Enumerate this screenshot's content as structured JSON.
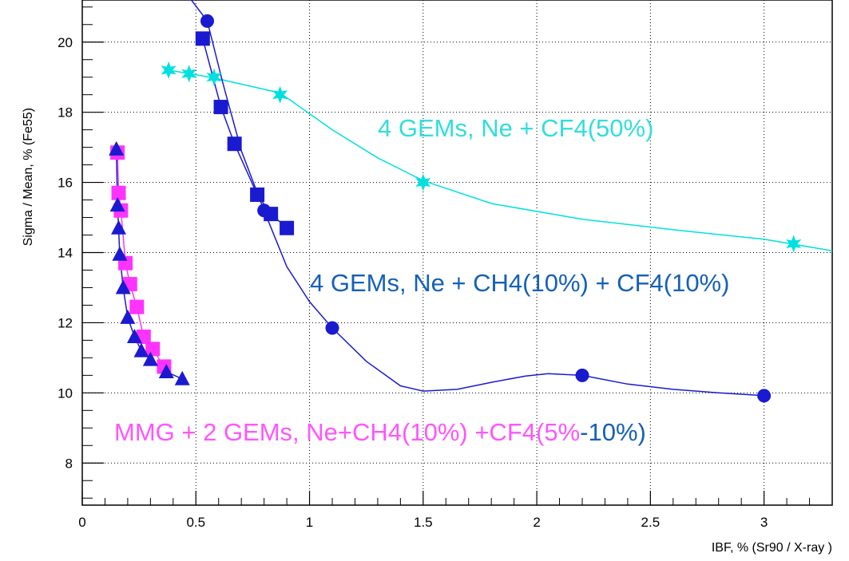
{
  "chart_data": {
    "type": "scatter",
    "title": "",
    "xlabel": "IBF, % (Sr90 / X-ray )",
    "ylabel": "Sigma / Mean, % (Fe55)",
    "xlim": [
      0,
      3.3
    ],
    "ylim": [
      6.8,
      21.2
    ],
    "x_ticks": [
      "0",
      "0.5",
      "1",
      "1.5",
      "2",
      "2.5",
      "3"
    ],
    "y_ticks": [
      "8",
      "10",
      "12",
      "14",
      "16",
      "18",
      "20"
    ],
    "grid": true,
    "series": [
      {
        "name": "4 GEMs, Ne + CF4(50%)",
        "marker": "star",
        "color": "#00e0e0",
        "x": [
          0.38,
          0.47,
          0.58,
          0.87,
          1.5,
          3.13
        ],
        "y": [
          19.2,
          19.1,
          19.0,
          18.5,
          16.0,
          14.25
        ],
        "curve": {
          "x": [
            0.38,
            0.47,
            0.58,
            0.87,
            1.1,
            1.3,
            1.5,
            1.8,
            2.2,
            2.6,
            3.0,
            3.3
          ],
          "y": [
            19.2,
            19.1,
            18.98,
            18.55,
            17.5,
            16.7,
            16.05,
            15.4,
            14.95,
            14.65,
            14.38,
            14.05
          ]
        }
      },
      {
        "name": "4 GEMs, Ne + CH4(10%)  + CF4(10%)",
        "marker": "circle",
        "color": "#1a1ad0",
        "x": [
          0.55,
          0.8,
          1.1,
          2.2,
          3.0
        ],
        "y": [
          20.6,
          15.2,
          11.85,
          10.5,
          9.92
        ],
        "curve": {
          "x": [
            0.48,
            0.55,
            0.62,
            0.7,
            0.8,
            0.9,
            1.0,
            1.1,
            1.25,
            1.4,
            1.5,
            1.65,
            1.8,
            1.95,
            2.05,
            2.2,
            2.4,
            2.6,
            2.8,
            3.0
          ],
          "y": [
            21.2,
            20.6,
            18.8,
            16.9,
            15.2,
            13.6,
            12.6,
            11.85,
            10.9,
            10.2,
            10.05,
            10.1,
            10.3,
            10.48,
            10.55,
            10.5,
            10.25,
            10.1,
            10.0,
            9.92
          ]
        }
      },
      {
        "name": "4 GEMs, Ne + CH4(10%)  + CF4(10%) (squares)",
        "marker": "square",
        "color": "#1a1ad0",
        "x": [
          0.53,
          0.61,
          0.67,
          0.77,
          0.83,
          0.9
        ],
        "y": [
          20.1,
          18.15,
          17.1,
          15.65,
          15.1,
          14.7
        ],
        "curve": {
          "x": [
            0.53,
            0.61,
            0.67,
            0.77,
            0.83,
            0.9
          ],
          "y": [
            20.1,
            18.15,
            17.1,
            15.65,
            15.1,
            14.7
          ]
        }
      },
      {
        "name": "MMG + 2 GEMs, Ne+CH4(10%) +CF4(5%",
        "marker": "square",
        "color": "#ff33ff",
        "x": [
          0.155,
          0.16,
          0.17,
          0.19,
          0.21,
          0.24,
          0.27,
          0.31,
          0.36
        ],
        "y": [
          16.85,
          15.7,
          15.2,
          13.7,
          13.1,
          12.45,
          11.6,
          11.25,
          10.75
        ],
        "curve": {
          "x": [
            0.155,
            0.16,
            0.17,
            0.19,
            0.21,
            0.24,
            0.27,
            0.31,
            0.36
          ],
          "y": [
            16.85,
            15.7,
            15.2,
            13.7,
            13.1,
            12.45,
            11.6,
            11.25,
            10.75
          ]
        }
      },
      {
        "name": "-10%)",
        "marker": "triangle",
        "color": "#1a1ad0",
        "x": [
          0.15,
          0.155,
          0.16,
          0.165,
          0.18,
          0.2,
          0.23,
          0.26,
          0.3,
          0.37,
          0.44
        ],
        "y": [
          16.95,
          15.35,
          14.7,
          13.95,
          13.0,
          12.15,
          11.6,
          11.2,
          10.95,
          10.6,
          10.4
        ],
        "curve": {
          "x": [
            0.15,
            0.155,
            0.16,
            0.165,
            0.18,
            0.2,
            0.23,
            0.26,
            0.3,
            0.37,
            0.44
          ],
          "y": [
            16.95,
            15.35,
            14.7,
            13.95,
            13.0,
            12.15,
            11.6,
            11.2,
            10.95,
            10.6,
            10.4
          ]
        }
      }
    ],
    "annotations": [
      {
        "parts": [
          {
            "text": "4 GEMs, Ne + CF4(50%)",
            "color": "#33dddd"
          }
        ]
      },
      {
        "parts": [
          {
            "text": "4 GEMs, Ne + CH4(10%)  + CF4(10%)",
            "color": "#1560b8"
          }
        ]
      },
      {
        "parts": [
          {
            "text": "MMG + 2 GEMs, Ne+CH4(10%) +CF4(5%",
            "color": "#ff55ff"
          },
          {
            "text": "-10%)",
            "color": "#1560b8"
          }
        ]
      }
    ]
  }
}
